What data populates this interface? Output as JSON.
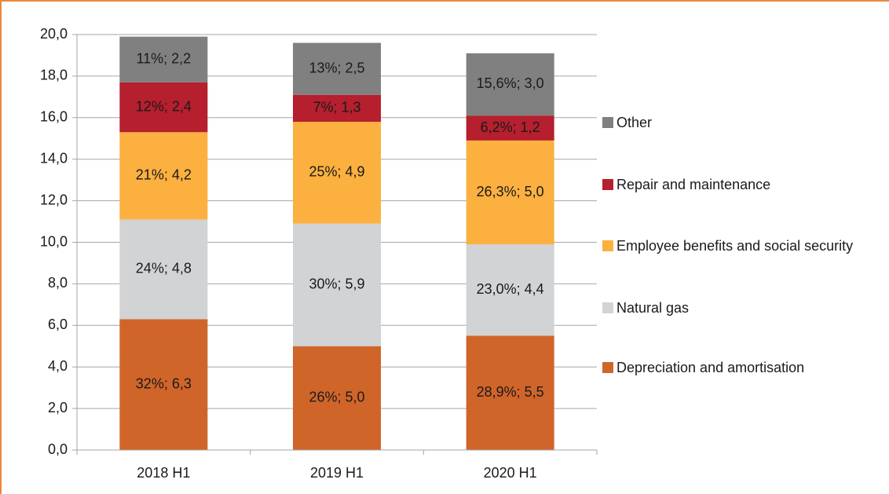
{
  "chart_data": {
    "type": "stacked_bar",
    "categories": [
      "2018 H1",
      "2019 H1",
      "2020 H1"
    ],
    "series": [
      {
        "name": "Depreciation and amortisation",
        "color": "#d0652a",
        "values": [
          6.3,
          5.0,
          5.5
        ],
        "value_labels": [
          "32%; 6,3",
          "26%; 5,0",
          "28,9%; 5,5"
        ]
      },
      {
        "name": "Natural gas",
        "color": "#d1d3d4",
        "values": [
          4.8,
          5.9,
          4.4
        ],
        "value_labels": [
          "24%; 4,8",
          "30%; 5,9",
          "23,0%; 4,4"
        ]
      },
      {
        "name": "Employee benefits and social security",
        "color": "#fbb040",
        "values": [
          4.2,
          4.9,
          5.0
        ],
        "value_labels": [
          "21%; 4,2",
          "25%; 4,9",
          "26,3%; 5,0"
        ]
      },
      {
        "name": "Repair and maintenance",
        "color": "#b51f2e",
        "values": [
          2.4,
          1.3,
          1.2
        ],
        "value_labels": [
          "12%; 2,4",
          "7%; 1,3",
          "6,2%; 1,2"
        ]
      },
      {
        "name": "Other",
        "color": "#808080",
        "values": [
          2.2,
          2.5,
          3.0
        ],
        "value_labels": [
          "11%; 2,2",
          "13%; 2,5",
          "15,6%; 3,0"
        ]
      }
    ],
    "ylim": [
      0,
      20
    ],
    "yticks": [
      {
        "value": 0,
        "label": "0,0"
      },
      {
        "value": 2,
        "label": "2,0"
      },
      {
        "value": 4,
        "label": "4,0"
      },
      {
        "value": 6,
        "label": "6,0"
      },
      {
        "value": 8,
        "label": "8,0"
      },
      {
        "value": 10,
        "label": "10,0"
      },
      {
        "value": 12,
        "label": "12,0"
      },
      {
        "value": 14,
        "label": "14,0"
      },
      {
        "value": 16,
        "label": "16,0"
      },
      {
        "value": 18,
        "label": "18,0"
      },
      {
        "value": 20,
        "label": "20,0"
      }
    ],
    "grid": true,
    "legend": "right"
  }
}
